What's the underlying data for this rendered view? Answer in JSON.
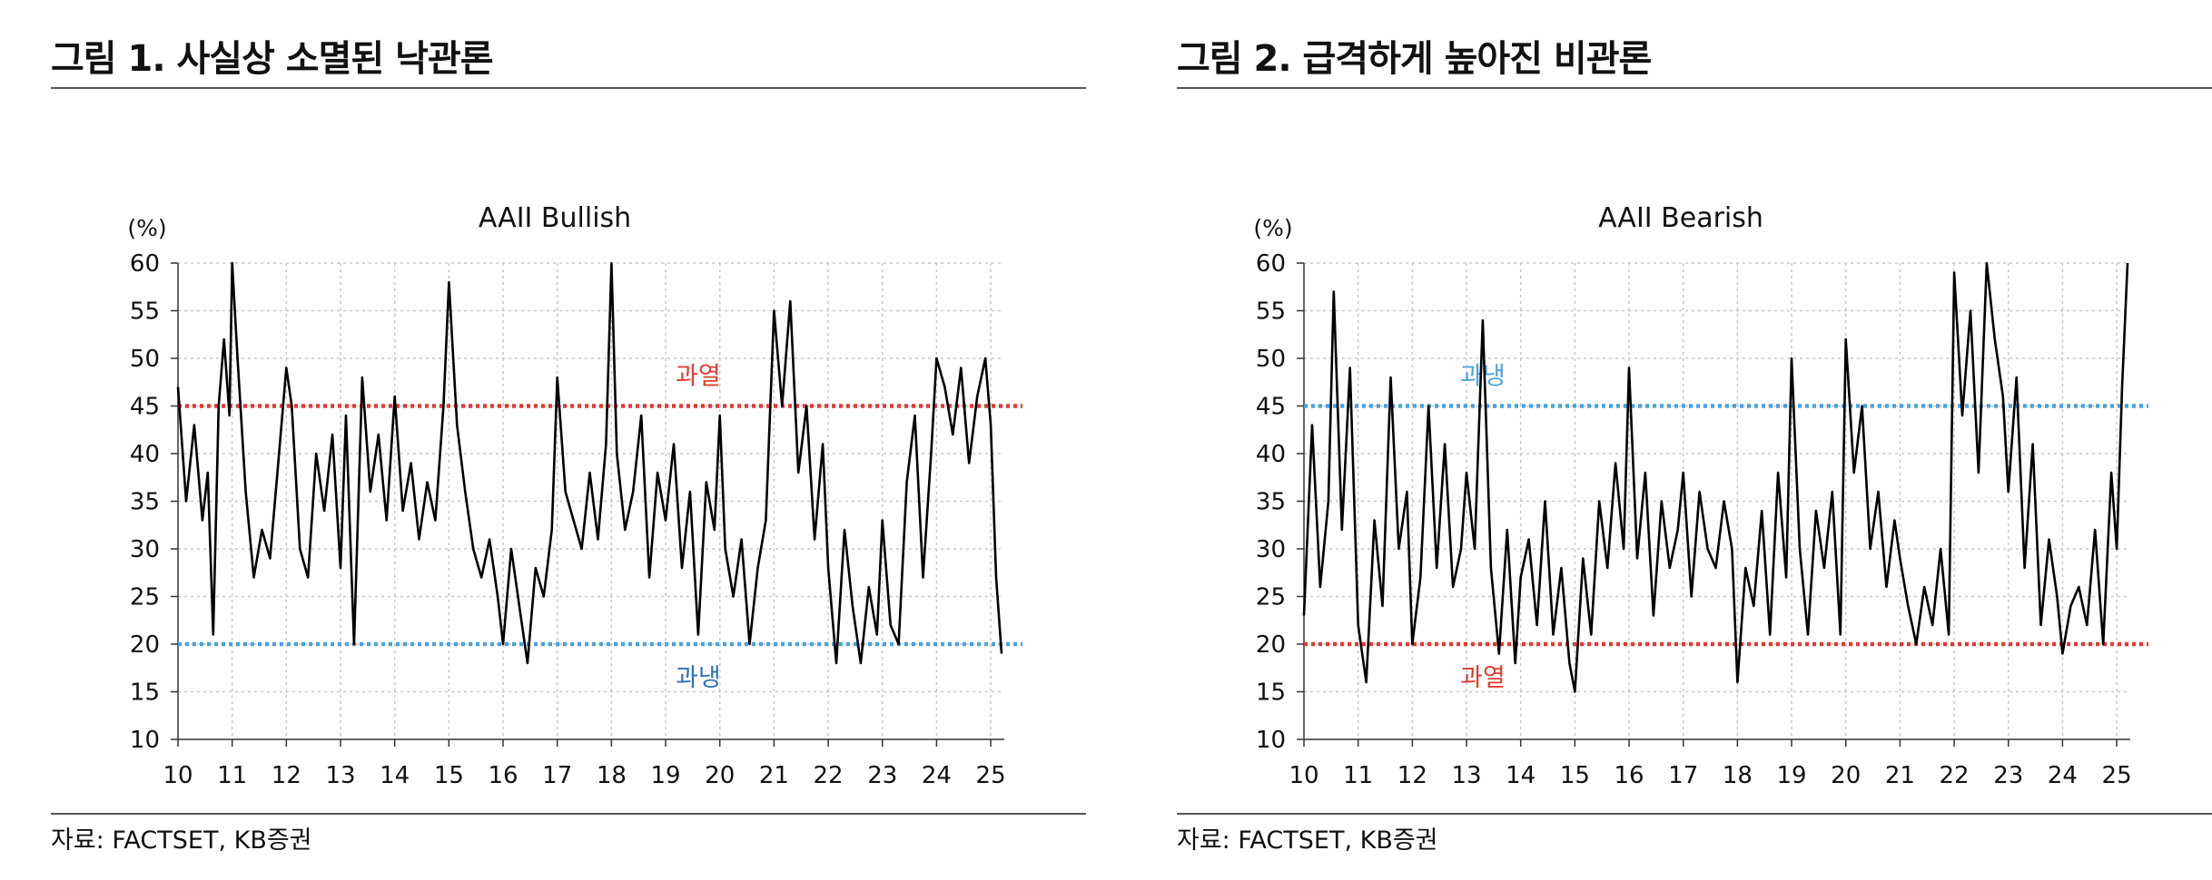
{
  "figures": [
    {
      "title": "그림 1. 사실상 소멸된 낙관론",
      "source": "자료: FACTSET, KB증권",
      "chart_data": {
        "type": "line",
        "title": "AAII Bullish",
        "ylabel": "(%)",
        "ylim": [
          10,
          60
        ],
        "y_ticks": [
          10,
          15,
          20,
          25,
          30,
          35,
          40,
          45,
          50,
          55,
          60
        ],
        "x_ticks": [
          "10",
          "11",
          "12",
          "13",
          "14",
          "15",
          "16",
          "17",
          "18",
          "19",
          "20",
          "21",
          "22",
          "23",
          "24",
          "25"
        ],
        "xlim": [
          2010,
          2025.25
        ],
        "grid": true,
        "series": [
          {
            "color": "#000000",
            "x": [
              2010.0,
              2010.15,
              2010.3,
              2010.45,
              2010.55,
              2010.65,
              2010.75,
              2010.85,
              2010.95,
              2011.0,
              2011.1,
              2011.25,
              2011.4,
              2011.55,
              2011.7,
              2011.85,
              2012.0,
              2012.1,
              2012.25,
              2012.4,
              2012.55,
              2012.7,
              2012.85,
              2013.0,
              2013.1,
              2013.25,
              2013.4,
              2013.55,
              2013.7,
              2013.85,
              2014.0,
              2014.15,
              2014.3,
              2014.45,
              2014.6,
              2014.75,
              2014.9,
              2015.0,
              2015.15,
              2015.3,
              2015.45,
              2015.6,
              2015.75,
              2015.9,
              2016.0,
              2016.15,
              2016.3,
              2016.45,
              2016.6,
              2016.75,
              2016.9,
              2017.0,
              2017.15,
              2017.3,
              2017.45,
              2017.6,
              2017.75,
              2017.9,
              2018.0,
              2018.1,
              2018.25,
              2018.4,
              2018.55,
              2018.7,
              2018.85,
              2019.0,
              2019.15,
              2019.3,
              2019.45,
              2019.6,
              2019.75,
              2019.9,
              2020.0,
              2020.1,
              2020.25,
              2020.4,
              2020.55,
              2020.7,
              2020.85,
              2021.0,
              2021.15,
              2021.3,
              2021.45,
              2021.6,
              2021.75,
              2021.9,
              2022.0,
              2022.15,
              2022.3,
              2022.45,
              2022.6,
              2022.75,
              2022.9,
              2023.0,
              2023.15,
              2023.3,
              2023.45,
              2023.6,
              2023.75,
              2023.9,
              2024.0,
              2024.15,
              2024.3,
              2024.45,
              2024.6,
              2024.75,
              2024.9,
              2025.0,
              2025.1,
              2025.2
            ],
            "values": [
              47.0,
              35.0,
              43.0,
              33.0,
              38.0,
              21.0,
              45.0,
              52.0,
              44.0,
              60.0,
              50.0,
              36.0,
              27.0,
              32.0,
              29.0,
              39.0,
              49.0,
              45.0,
              30.0,
              27.0,
              40.0,
              34.0,
              42.0,
              28.0,
              44.0,
              20.0,
              48.0,
              36.0,
              42.0,
              33.0,
              46.0,
              34.0,
              39.0,
              31.0,
              37.0,
              33.0,
              45.0,
              58.0,
              43.0,
              36.0,
              30.0,
              27.0,
              31.0,
              25.0,
              20.0,
              30.0,
              24.0,
              18.0,
              28.0,
              25.0,
              32.0,
              48.0,
              36.0,
              33.0,
              30.0,
              38.0,
              31.0,
              41.0,
              60.0,
              40.0,
              32.0,
              36.0,
              44.0,
              27.0,
              38.0,
              33.0,
              41.0,
              28.0,
              36.0,
              21.0,
              37.0,
              32.0,
              44.0,
              30.0,
              25.0,
              31.0,
              20.0,
              28.0,
              33.0,
              55.0,
              45.0,
              56.0,
              38.0,
              45.0,
              31.0,
              41.0,
              28.0,
              18.0,
              32.0,
              24.0,
              18.0,
              26.0,
              21.0,
              33.0,
              22.0,
              20.0,
              37.0,
              44.0,
              27.0,
              40.0,
              50.0,
              47.0,
              42.0,
              49.0,
              39.0,
              46.0,
              50.0,
              43.0,
              27.0,
              19.0
            ]
          }
        ],
        "reference_lines": [
          {
            "y": 45,
            "label": "과열",
            "color": "#e03c31"
          },
          {
            "y": 20,
            "label": "과냉",
            "color": "#4aa3df",
            "label_color": "#2f6fbf"
          }
        ]
      }
    },
    {
      "title": "그림 2. 급격하게 높아진 비관론",
      "source": "자료: FACTSET, KB증권",
      "chart_data": {
        "type": "line",
        "title": "AAII Bearish",
        "ylabel": "(%)",
        "ylim": [
          10,
          60
        ],
        "y_ticks": [
          10,
          15,
          20,
          25,
          30,
          35,
          40,
          45,
          50,
          55,
          60
        ],
        "x_ticks": [
          "10",
          "11",
          "12",
          "13",
          "14",
          "15",
          "16",
          "17",
          "18",
          "19",
          "20",
          "21",
          "22",
          "23",
          "24",
          "25"
        ],
        "xlim": [
          2010,
          2025.25
        ],
        "grid": true,
        "series": [
          {
            "color": "#000000",
            "x": [
              2010.0,
              2010.15,
              2010.3,
              2010.45,
              2010.55,
              2010.7,
              2010.85,
              2011.0,
              2011.15,
              2011.3,
              2011.45,
              2011.6,
              2011.75,
              2011.9,
              2012.0,
              2012.15,
              2012.3,
              2012.45,
              2012.6,
              2012.75,
              2012.9,
              2013.0,
              2013.15,
              2013.3,
              2013.45,
              2013.6,
              2013.75,
              2013.9,
              2014.0,
              2014.15,
              2014.3,
              2014.45,
              2014.6,
              2014.75,
              2014.9,
              2015.0,
              2015.15,
              2015.3,
              2015.45,
              2015.6,
              2015.75,
              2015.9,
              2016.0,
              2016.15,
              2016.3,
              2016.45,
              2016.6,
              2016.75,
              2016.9,
              2017.0,
              2017.15,
              2017.3,
              2017.45,
              2017.6,
              2017.75,
              2017.9,
              2018.0,
              2018.15,
              2018.3,
              2018.45,
              2018.6,
              2018.75,
              2018.9,
              2019.0,
              2019.15,
              2019.3,
              2019.45,
              2019.6,
              2019.75,
              2019.9,
              2020.0,
              2020.15,
              2020.3,
              2020.45,
              2020.6,
              2020.75,
              2020.9,
              2021.0,
              2021.15,
              2021.3,
              2021.45,
              2021.6,
              2021.75,
              2021.9,
              2022.0,
              2022.15,
              2022.3,
              2022.45,
              2022.6,
              2022.75,
              2022.9,
              2023.0,
              2023.15,
              2023.3,
              2023.45,
              2023.6,
              2023.75,
              2023.9,
              2024.0,
              2024.15,
              2024.3,
              2024.45,
              2024.6,
              2024.75,
              2024.9,
              2025.0,
              2025.1,
              2025.2
            ],
            "values": [
              23.0,
              43.0,
              26.0,
              35.0,
              57.0,
              32.0,
              49.0,
              22.0,
              16.0,
              33.0,
              24.0,
              48.0,
              30.0,
              36.0,
              20.0,
              27.0,
              45.0,
              28.0,
              41.0,
              26.0,
              30.0,
              38.0,
              30.0,
              54.0,
              28.0,
              19.0,
              32.0,
              18.0,
              27.0,
              31.0,
              22.0,
              35.0,
              21.0,
              28.0,
              18.0,
              15.0,
              29.0,
              21.0,
              35.0,
              28.0,
              39.0,
              30.0,
              49.0,
              29.0,
              38.0,
              23.0,
              35.0,
              28.0,
              32.0,
              38.0,
              25.0,
              36.0,
              30.0,
              28.0,
              35.0,
              30.0,
              16.0,
              28.0,
              24.0,
              34.0,
              21.0,
              38.0,
              27.0,
              50.0,
              30.0,
              21.0,
              34.0,
              28.0,
              36.0,
              21.0,
              52.0,
              38.0,
              45.0,
              30.0,
              36.0,
              26.0,
              33.0,
              29.0,
              24.0,
              20.0,
              26.0,
              22.0,
              30.0,
              21.0,
              59.0,
              44.0,
              55.0,
              38.0,
              60.0,
              52.0,
              46.0,
              36.0,
              48.0,
              28.0,
              41.0,
              22.0,
              31.0,
              25.0,
              19.0,
              24.0,
              26.0,
              22.0,
              32.0,
              20.0,
              38.0,
              30.0,
              47.0,
              60.0
            ]
          }
        ],
        "reference_lines": [
          {
            "y": 45,
            "label": "과냉",
            "color": "#4aa3df",
            "label_color": "#4aa3df"
          },
          {
            "y": 20,
            "label": "과열",
            "color": "#e03c31"
          }
        ]
      }
    }
  ]
}
